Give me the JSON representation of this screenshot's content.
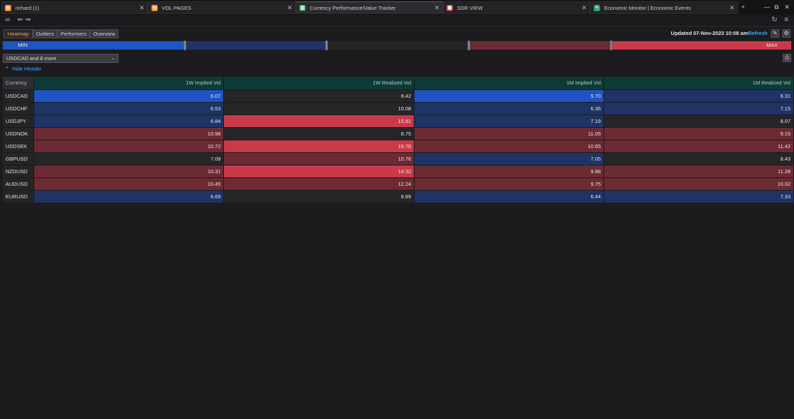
{
  "tabs": [
    {
      "label": "richard (1)",
      "icon": "app-icon",
      "icon_color": "#f08a2c"
    },
    {
      "label": "VOL PAGES",
      "icon": "app-icon",
      "icon_color": "#f08a2c"
    },
    {
      "label": "Currency Performance/Value Tracker",
      "icon": "chart-icon",
      "icon_color": "#2e9b4e"
    },
    {
      "label": "SDR VIEW",
      "icon": "grid-icon",
      "icon_color": "#c43b3b"
    },
    {
      "label": "Economic Monitor | Economic Events",
      "icon": "lightning-icon",
      "icon_color": "#2aa377"
    }
  ],
  "toolbar": {
    "modes": [
      {
        "label": "Heatmap",
        "active": true
      },
      {
        "label": "Outliers"
      },
      {
        "label": "Performers"
      },
      {
        "label": "Overview"
      }
    ],
    "updated": "Updated 07-Nov-2023 10:08 am",
    "refresh": "Refresh"
  },
  "legend": {
    "min_label": "MIN",
    "max_label": "MAX"
  },
  "filter": {
    "selection": "USDCAD and 8 more"
  },
  "hide_header": "Hide Header",
  "table": {
    "columns": [
      "Currency",
      "1W Implied Vol",
      "1W Realized Vol",
      "1M Implied Vol",
      "1M Realized Vol"
    ],
    "rows": [
      {
        "currency": "USDCAD",
        "values": [
          "6.07",
          "8.42",
          "5.70",
          "6.31"
        ],
        "heat": [
          "lowstrong",
          "mid",
          "lowstrong",
          "low"
        ]
      },
      {
        "currency": "USDCHF",
        "values": [
          "6.53",
          "10.08",
          "6.36",
          "7.15"
        ],
        "heat": [
          "low",
          "mid",
          "low",
          "low"
        ]
      },
      {
        "currency": "USDJPY",
        "values": [
          "6.84",
          "15.81",
          "7.19",
          "8.07"
        ],
        "heat": [
          "low",
          "highstrong",
          "low",
          "mid"
        ]
      },
      {
        "currency": "USDNOK",
        "values": [
          "10.98",
          "8.75",
          "11.05",
          "9.15"
        ],
        "heat": [
          "high",
          "mid",
          "high",
          "high"
        ]
      },
      {
        "currency": "USDSEK",
        "values": [
          "10.72",
          "15.76",
          "10.65",
          "11.42"
        ],
        "heat": [
          "high",
          "highstrong",
          "high",
          "high"
        ]
      },
      {
        "currency": "GBPUSD",
        "values": [
          "7.09",
          "10.76",
          "7.05",
          "8.43"
        ],
        "heat": [
          "mid",
          "high",
          "low",
          "mid"
        ]
      },
      {
        "currency": "NZDUSD",
        "values": [
          "10.31",
          "14.32",
          "9.88",
          "11.28"
        ],
        "heat": [
          "high",
          "highstrong",
          "high",
          "high"
        ]
      },
      {
        "currency": "AUDUSD",
        "values": [
          "10.45",
          "12.24",
          "9.75",
          "10.02"
        ],
        "heat": [
          "high",
          "high",
          "high",
          "high"
        ]
      },
      {
        "currency": "EURUSD",
        "values": [
          "6.69",
          "8.89",
          "6.44",
          "7.33"
        ],
        "heat": [
          "low",
          "mid",
          "low",
          "low"
        ]
      }
    ]
  },
  "colors": {
    "lowstrong": "#1f54c2",
    "low": "#1f3465",
    "mid": "#262629",
    "high": "#6c2a33",
    "highstrong": "#c93a48",
    "accent": "#3ea8ff",
    "active_mode": "#ff9a3c"
  }
}
